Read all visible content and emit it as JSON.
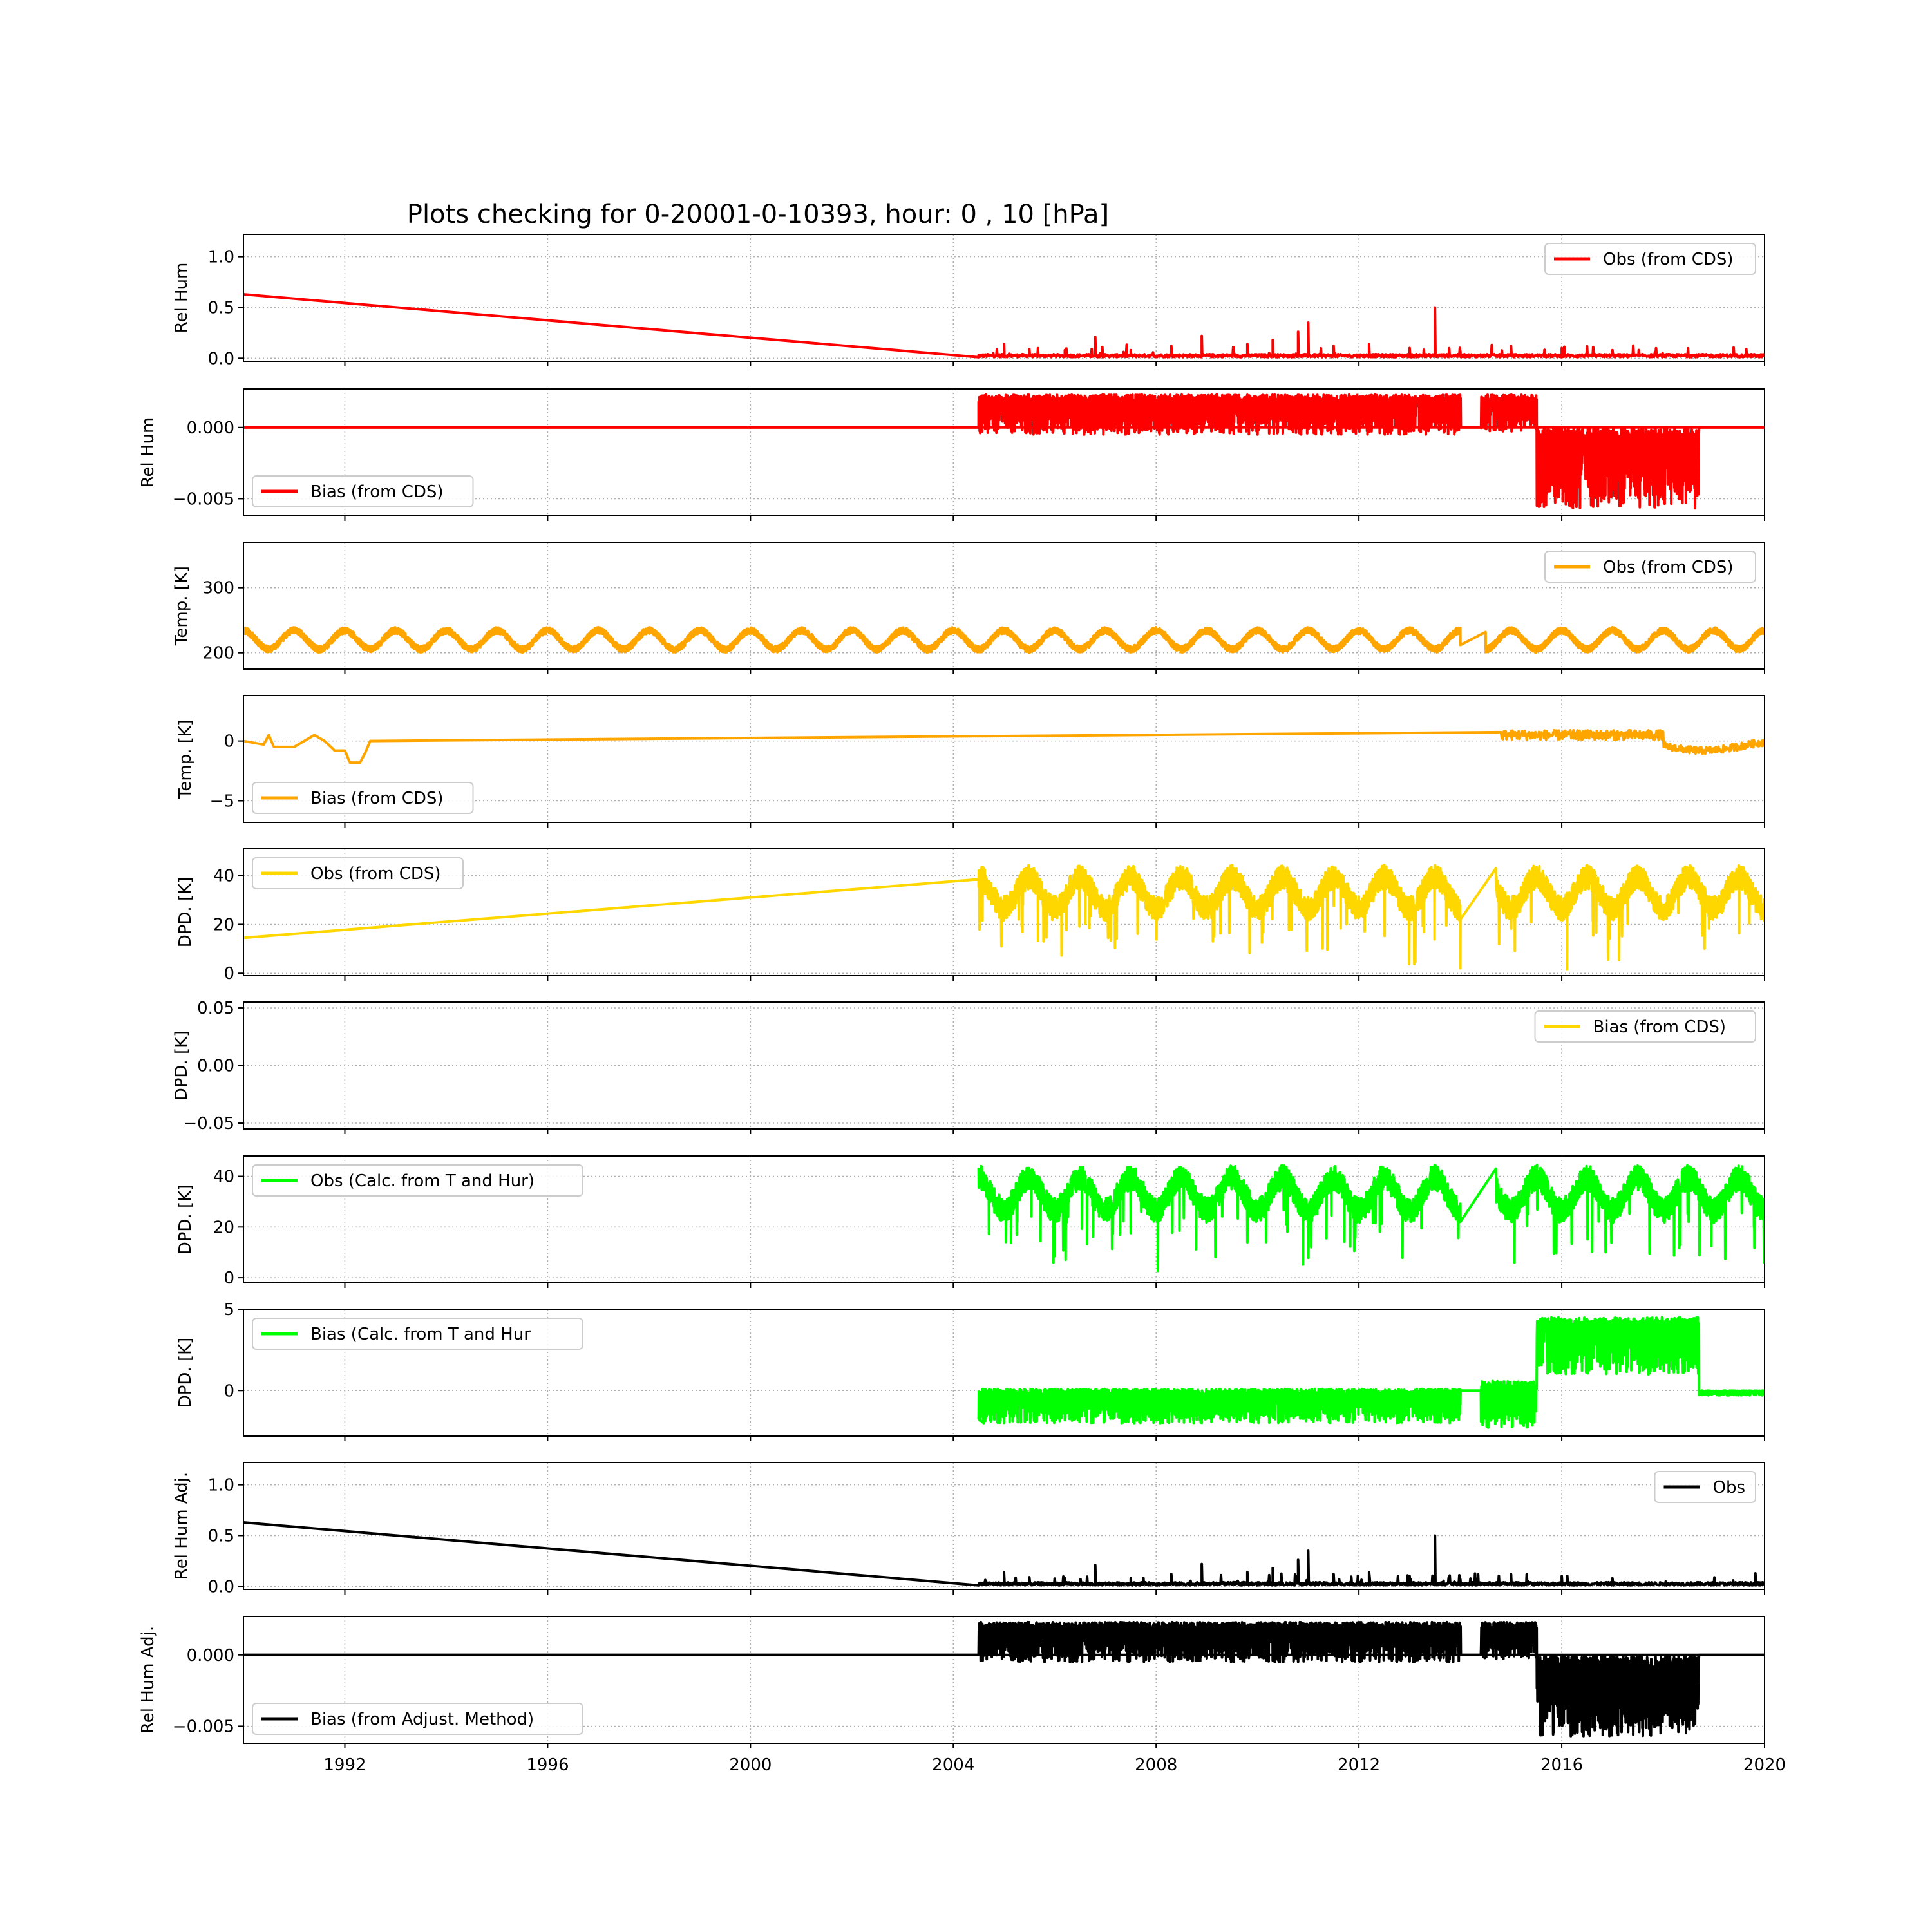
{
  "figure": {
    "title": "Plots checking for 0-20001-0-10393, hour: 0 , 10 [hPa]",
    "shared_x": {
      "xlim": [
        1990,
        2020
      ],
      "ticks": [
        1992,
        1996,
        2000,
        2004,
        2008,
        2012,
        2016,
        2020
      ],
      "tick_labels": [
        "1992",
        "1996",
        "2000",
        "2004",
        "2008",
        "2012",
        "2016",
        "2020"
      ]
    }
  },
  "chart_data": [
    {
      "type": "line",
      "ylabel": "Rel Hum",
      "ylim": [
        -0.03,
        1.22
      ],
      "yticks": [
        0.0,
        0.5,
        1.0
      ],
      "ytick_labels": [
        "0.0",
        "0.5",
        "1.0"
      ],
      "legend": {
        "label": "Obs (from CDS)",
        "loc": "upper right"
      },
      "grid": true,
      "series": [
        {
          "name": "Obs (from CDS)",
          "color": "#ff0000",
          "kind": "rh_obs",
          "points": [
            [
              1990.0,
              0.63
            ],
            [
              2004.5,
              0.01
            ],
            [
              2004.8,
              0.02
            ],
            [
              2005.0,
              0.14
            ],
            [
              2005.1,
              0.02
            ],
            [
              2005.5,
              0.09
            ],
            [
              2005.6,
              0.02
            ],
            [
              2006.2,
              0.08
            ],
            [
              2006.3,
              0.02
            ],
            [
              2006.8,
              0.21
            ],
            [
              2006.9,
              0.02
            ],
            [
              2007.5,
              0.08
            ],
            [
              2007.6,
              0.03
            ],
            [
              2008.3,
              0.12
            ],
            [
              2008.4,
              0.03
            ],
            [
              2008.9,
              0.22
            ],
            [
              2009.0,
              0.03
            ],
            [
              2009.8,
              0.14
            ],
            [
              2009.9,
              0.03
            ],
            [
              2010.3,
              0.18
            ],
            [
              2010.4,
              0.03
            ],
            [
              2010.8,
              0.26
            ],
            [
              2010.9,
              0.03
            ],
            [
              2011.0,
              0.35
            ],
            [
              2011.1,
              0.03
            ],
            [
              2011.5,
              0.12
            ],
            [
              2011.6,
              0.03
            ],
            [
              2012.2,
              0.14
            ],
            [
              2012.3,
              0.03
            ],
            [
              2013.0,
              0.1
            ],
            [
              2013.1,
              0.02
            ],
            [
              2013.5,
              0.5
            ],
            [
              2013.55,
              0.02
            ],
            [
              2014.0,
              0.07
            ],
            [
              2014.3,
              0.01
            ],
            [
              2015.0,
              0.12
            ],
            [
              2015.3,
              0.02
            ],
            [
              2016.0,
              0.1
            ],
            [
              2016.3,
              0.01
            ],
            [
              2017.0,
              0.08
            ],
            [
              2017.3,
              0.01
            ],
            [
              2019.0,
              0.02
            ],
            [
              2019.9,
              0.01
            ],
            [
              2020.0,
              0.05
            ]
          ]
        }
      ]
    },
    {
      "type": "line",
      "ylabel": "Rel Hum",
      "ylim": [
        -0.0062,
        0.0027
      ],
      "yticks": [
        -0.005,
        0.0
      ],
      "ytick_labels": [
        "−0.005",
        "0.000"
      ],
      "legend": {
        "label": "Bias (from CDS)",
        "loc": "lower left"
      },
      "grid": true,
      "series": [
        {
          "name": "Bias (from CDS)",
          "color": "#ff0000",
          "kind": "rh_bias",
          "points": [
            [
              1990.0,
              0.0
            ],
            [
              2004.5,
              0.0
            ],
            [
              2004.6,
              0.0023
            ],
            [
              2004.8,
              -0.0005
            ],
            [
              2005.0,
              0.0023
            ],
            [
              2005.5,
              -0.0005
            ],
            [
              2006.0,
              0.0023
            ],
            [
              2007.0,
              -0.0005
            ],
            [
              2008.0,
              0.0023
            ],
            [
              2009.0,
              -0.0005
            ],
            [
              2010.0,
              0.0023
            ],
            [
              2011.0,
              -0.0005
            ],
            [
              2012.0,
              0.0023
            ],
            [
              2013.0,
              -0.0005
            ],
            [
              2014.0,
              0.0023
            ],
            [
              2014.4,
              0.0
            ],
            [
              2015.0,
              0.0023
            ],
            [
              2015.5,
              -0.0005
            ],
            [
              2015.6,
              -0.004
            ],
            [
              2016.0,
              -0.0055
            ],
            [
              2016.5,
              -0.004
            ],
            [
              2017.0,
              -0.0057
            ],
            [
              2017.5,
              -0.004
            ],
            [
              2018.0,
              -0.0052
            ],
            [
              2018.6,
              -0.004
            ],
            [
              2018.7,
              0.0
            ],
            [
              2020.0,
              0.0
            ]
          ]
        }
      ]
    },
    {
      "type": "line",
      "ylabel": "Temp. [K]",
      "ylim": [
        175,
        370
      ],
      "yticks": [
        200,
        300
      ],
      "ytick_labels": [
        "200",
        "300"
      ],
      "legend": {
        "label": "Obs (from CDS)",
        "loc": "upper right"
      },
      "grid": true,
      "series": [
        {
          "name": "Obs (from CDS)",
          "color": "#ffa500",
          "kind": "temp_obs",
          "mean": 220,
          "amplitude": 16,
          "period_years": 1.0,
          "x_range": [
            1990,
            2020
          ]
        }
      ]
    },
    {
      "type": "line",
      "ylabel": "Temp. [K]",
      "ylim": [
        -6.8,
        3.8
      ],
      "yticks": [
        -5,
        0
      ],
      "ytick_labels": [
        "−5",
        "0"
      ],
      "legend": {
        "label": "Bias (from CDS)",
        "loc": "lower left"
      },
      "grid": true,
      "series": [
        {
          "name": "Bias (from CDS)",
          "color": "#ffa500",
          "kind": "temp_bias",
          "points": [
            [
              1990.0,
              0.0
            ],
            [
              1990.4,
              -0.3
            ],
            [
              1990.5,
              0.5
            ],
            [
              1990.6,
              -0.5
            ],
            [
              1991.0,
              -0.5
            ],
            [
              1991.2,
              0.0
            ],
            [
              1991.4,
              0.5
            ],
            [
              1991.6,
              0.0
            ],
            [
              1991.8,
              -0.8
            ],
            [
              1992.0,
              -0.8
            ],
            [
              1992.1,
              -1.8
            ],
            [
              1992.3,
              -1.8
            ],
            [
              1992.4,
              -1.0
            ],
            [
              1992.5,
              0.0
            ],
            [
              2014.8,
              0.0
            ],
            [
              2015.0,
              0.4
            ],
            [
              2015.5,
              0.7
            ],
            [
              2016.5,
              0.5
            ],
            [
              2017.5,
              0.4
            ],
            [
              2018.0,
              0.0
            ],
            [
              2018.5,
              -0.4
            ],
            [
              2019.0,
              -0.7
            ],
            [
              2019.5,
              -0.5
            ],
            [
              2020.0,
              0.0
            ]
          ]
        }
      ]
    },
    {
      "type": "line",
      "ylabel": "DPD. [K]",
      "ylim": [
        -1,
        51
      ],
      "yticks": [
        0,
        20,
        40
      ],
      "ytick_labels": [
        "0",
        "20",
        "40"
      ],
      "legend": {
        "label": "Obs (from CDS)",
        "loc": "upper left"
      },
      "grid": true,
      "series": [
        {
          "name": "Obs (from CDS)",
          "color": "#ffd700",
          "kind": "dpd_obs",
          "prefix": [
            [
              1990.0,
              14.5
            ],
            [
              2004.5,
              38.5
            ]
          ],
          "mean": 33,
          "amplitude": 8,
          "x_range": [
            2004.5,
            2020
          ]
        }
      ]
    },
    {
      "type": "line",
      "ylabel": "DPD. [K]",
      "ylim": [
        -0.055,
        0.055
      ],
      "yticks": [
        -0.05,
        0.0,
        0.05
      ],
      "ytick_labels": [
        "−0.05",
        "0.00",
        "0.05"
      ],
      "legend": {
        "label": "Bias (from CDS)",
        "loc": "upper right"
      },
      "grid": true,
      "series": [
        {
          "name": "Bias (from CDS)",
          "color": "#ffd700",
          "kind": "empty",
          "points": []
        }
      ]
    },
    {
      "type": "line",
      "ylabel": "DPD. [K]",
      "ylim": [
        -2,
        48
      ],
      "yticks": [
        0,
        20,
        40
      ],
      "ytick_labels": [
        "0",
        "20",
        "40"
      ],
      "legend": {
        "label": "Obs (Calc. from T and Hur)",
        "loc": "upper left"
      },
      "grid": true,
      "series": [
        {
          "name": "Obs (Calc. from T and Hur)",
          "color": "#00ff00",
          "kind": "dpd_obs",
          "prefix": [],
          "mean": 33,
          "amplitude": 8,
          "x_range": [
            2004.5,
            2020
          ]
        }
      ]
    },
    {
      "type": "line",
      "ylabel": "DPD. [K]",
      "ylim": [
        -2.8,
        5.0
      ],
      "yticks": [
        0,
        5
      ],
      "ytick_labels": [
        "0",
        "5"
      ],
      "legend": {
        "label": "Bias (Calc. from T and Hur",
        "loc": "upper left"
      },
      "grid": true,
      "series": [
        {
          "name": "Bias (Calc. from T and Hur",
          "color": "#00ff00",
          "kind": "dpd_bias",
          "points": [
            [
              2004.5,
              0.0
            ],
            [
              2004.6,
              -2.0
            ],
            [
              2005.0,
              0.1
            ],
            [
              2006.0,
              -2.0
            ],
            [
              2007.0,
              0.1
            ],
            [
              2008.0,
              -2.0
            ],
            [
              2009.0,
              0.1
            ],
            [
              2010.0,
              -2.0
            ],
            [
              2011.0,
              0.1
            ],
            [
              2012.0,
              -2.0
            ],
            [
              2013.0,
              0.1
            ],
            [
              2014.0,
              -2.0
            ],
            [
              2014.4,
              0.0
            ],
            [
              2014.6,
              -2.3
            ],
            [
              2015.0,
              0.5
            ],
            [
              2015.5,
              -1.0
            ],
            [
              2015.6,
              1.5
            ],
            [
              2016.0,
              4.5
            ],
            [
              2016.5,
              1.5
            ],
            [
              2017.0,
              4.3
            ],
            [
              2017.5,
              1.2
            ],
            [
              2018.0,
              3.5
            ],
            [
              2018.6,
              1.0
            ],
            [
              2018.7,
              0.0
            ],
            [
              2019.2,
              -0.3
            ],
            [
              2019.7,
              0.0
            ],
            [
              2020.0,
              0.0
            ]
          ]
        }
      ]
    },
    {
      "type": "line",
      "ylabel": "Rel Hum Adj.",
      "ylim": [
        -0.03,
        1.22
      ],
      "yticks": [
        0.0,
        0.5,
        1.0
      ],
      "ytick_labels": [
        "0.0",
        "0.5",
        "1.0"
      ],
      "legend": {
        "label": "Obs",
        "loc": "upper right"
      },
      "grid": true,
      "series": [
        {
          "name": "Obs",
          "color": "#000000",
          "kind": "rh_obs",
          "points": [
            [
              1990.0,
              0.63
            ],
            [
              2004.5,
              0.01
            ],
            [
              2004.8,
              0.02
            ],
            [
              2005.0,
              0.14
            ],
            [
              2005.1,
              0.02
            ],
            [
              2005.5,
              0.09
            ],
            [
              2005.6,
              0.02
            ],
            [
              2006.2,
              0.08
            ],
            [
              2006.3,
              0.02
            ],
            [
              2006.8,
              0.21
            ],
            [
              2006.9,
              0.02
            ],
            [
              2007.5,
              0.08
            ],
            [
              2007.6,
              0.03
            ],
            [
              2008.3,
              0.12
            ],
            [
              2008.4,
              0.03
            ],
            [
              2008.9,
              0.22
            ],
            [
              2009.0,
              0.03
            ],
            [
              2009.8,
              0.14
            ],
            [
              2009.9,
              0.03
            ],
            [
              2010.3,
              0.18
            ],
            [
              2010.4,
              0.03
            ],
            [
              2010.8,
              0.26
            ],
            [
              2010.9,
              0.03
            ],
            [
              2011.0,
              0.35
            ],
            [
              2011.1,
              0.03
            ],
            [
              2011.5,
              0.12
            ],
            [
              2011.6,
              0.03
            ],
            [
              2012.2,
              0.14
            ],
            [
              2012.3,
              0.03
            ],
            [
              2013.0,
              0.1
            ],
            [
              2013.1,
              0.02
            ],
            [
              2013.5,
              0.5
            ],
            [
              2013.55,
              0.02
            ],
            [
              2014.0,
              0.07
            ],
            [
              2014.3,
              0.01
            ],
            [
              2015.0,
              0.12
            ],
            [
              2015.3,
              0.02
            ],
            [
              2016.0,
              0.1
            ],
            [
              2016.3,
              0.01
            ],
            [
              2017.0,
              0.08
            ],
            [
              2017.3,
              0.01
            ],
            [
              2019.0,
              0.02
            ],
            [
              2019.9,
              0.01
            ],
            [
              2020.0,
              0.05
            ]
          ]
        }
      ]
    },
    {
      "type": "line",
      "ylabel": "Rel Hum Adj.",
      "ylim": [
        -0.0062,
        0.0027
      ],
      "yticks": [
        -0.005,
        0.0
      ],
      "ytick_labels": [
        "−0.005",
        "0.000"
      ],
      "legend": {
        "label": "Bias (from Adjust. Method)",
        "loc": "lower left"
      },
      "grid": true,
      "series": [
        {
          "name": "Bias (from Adjust. Method)",
          "color": "#000000",
          "kind": "rh_bias",
          "points": [
            [
              1990.0,
              0.0
            ],
            [
              2004.5,
              0.0
            ],
            [
              2004.6,
              0.0023
            ],
            [
              2004.8,
              -0.0005
            ],
            [
              2005.0,
              0.0023
            ],
            [
              2005.5,
              -0.0005
            ],
            [
              2006.0,
              0.0023
            ],
            [
              2007.0,
              -0.0005
            ],
            [
              2008.0,
              0.0023
            ],
            [
              2009.0,
              -0.0005
            ],
            [
              2010.0,
              0.0023
            ],
            [
              2011.0,
              -0.0005
            ],
            [
              2012.0,
              0.0023
            ],
            [
              2013.0,
              -0.0005
            ],
            [
              2014.0,
              0.0023
            ],
            [
              2014.4,
              0.0
            ],
            [
              2015.0,
              0.0023
            ],
            [
              2015.5,
              -0.0005
            ],
            [
              2015.6,
              -0.004
            ],
            [
              2016.0,
              -0.0055
            ],
            [
              2016.5,
              -0.004
            ],
            [
              2017.0,
              -0.0057
            ],
            [
              2017.5,
              -0.004
            ],
            [
              2018.0,
              -0.0052
            ],
            [
              2018.6,
              -0.004
            ],
            [
              2018.7,
              0.0
            ],
            [
              2020.0,
              0.0
            ]
          ]
        }
      ]
    }
  ]
}
